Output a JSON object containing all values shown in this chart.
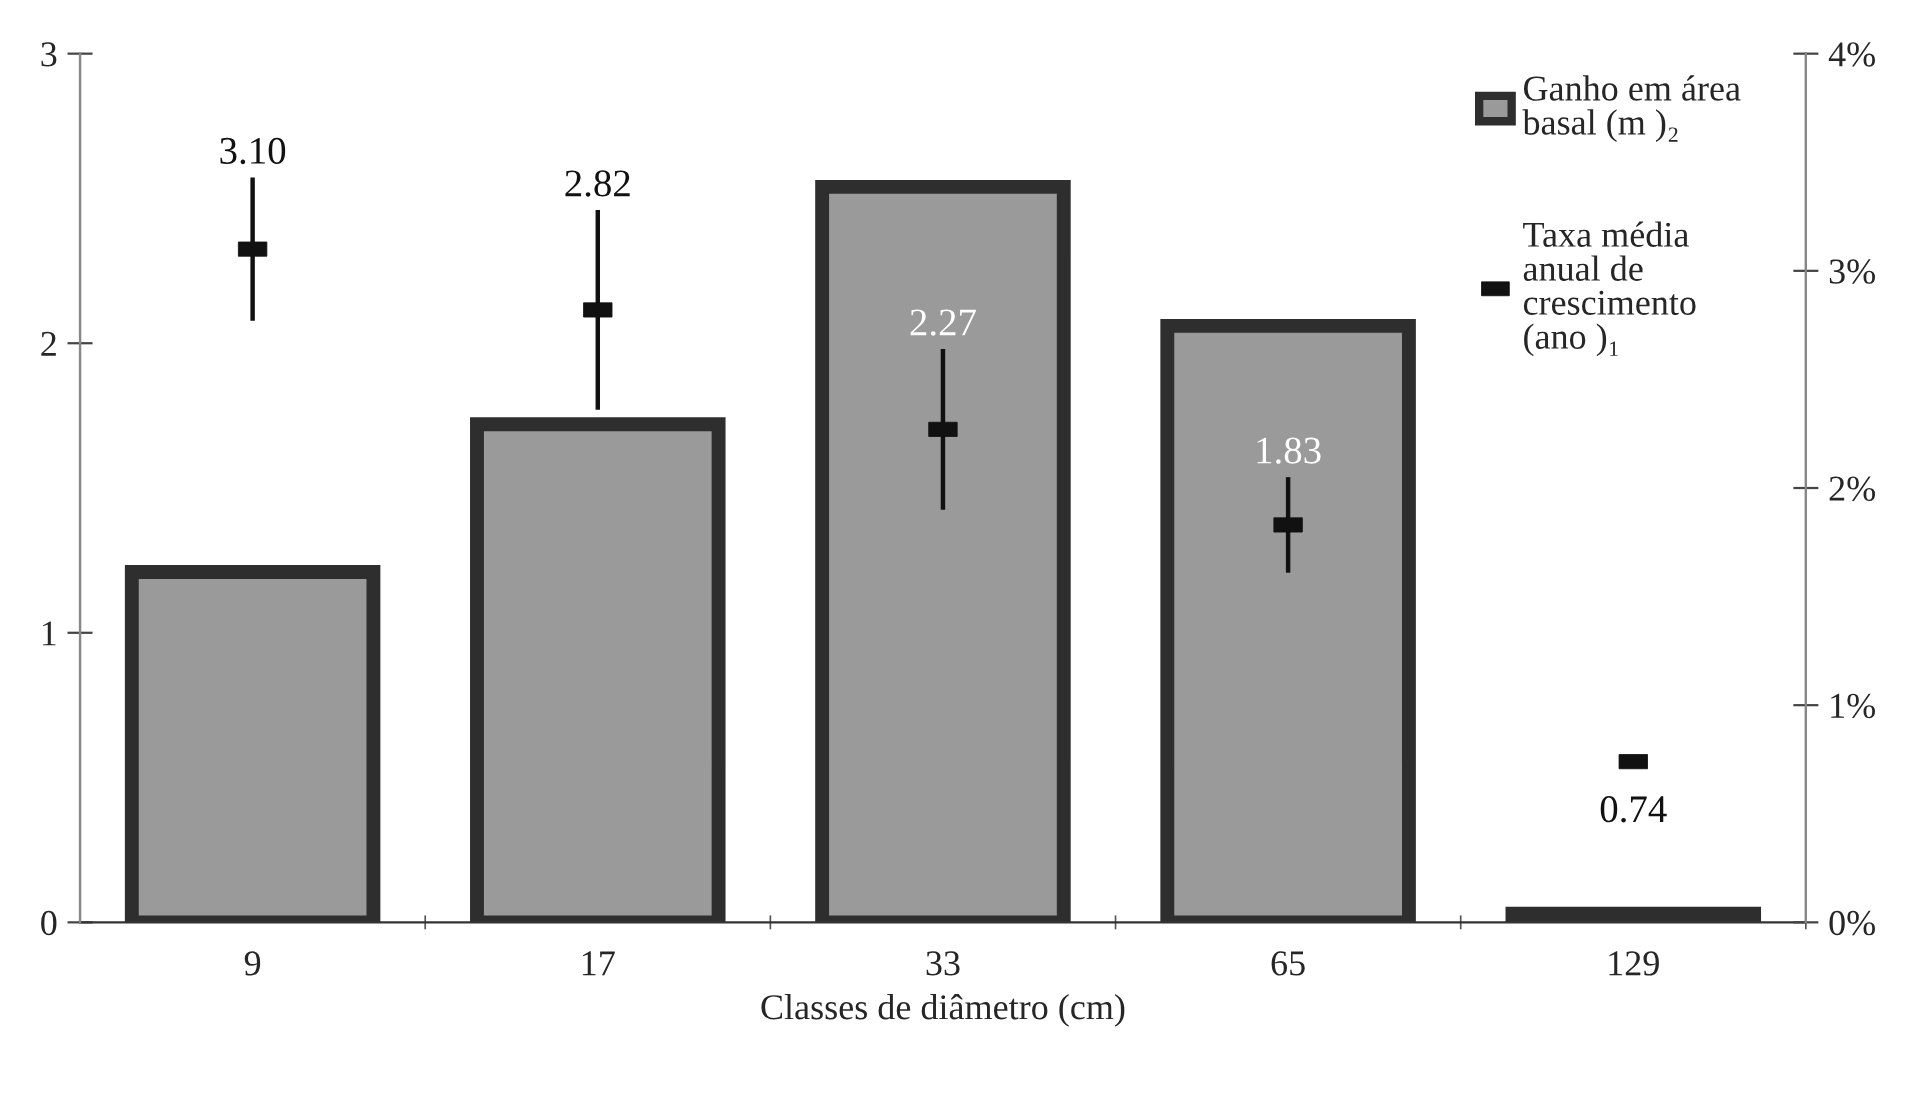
{
  "chart_data": {
    "type": "bar",
    "xlabel": "Classes de diâmetro (cm)",
    "categories": [
      "9",
      "17",
      "33",
      "65",
      "129"
    ],
    "series": [
      {
        "name": "Ganho em área\nbasal (m )₂",
        "color": "#9a9a9a",
        "values": [
          1.21,
          1.72,
          2.54,
          2.06,
          0.03
        ]
      },
      {
        "name": "Taxa média\nanual de\ncrescimento\n(ano )₁",
        "type": "scatter",
        "axis": "y2",
        "color": "#111111",
        "values": [
          3.1,
          2.82,
          2.27,
          1.83,
          0.74
        ],
        "errors": [
          0.33,
          0.46,
          0.37,
          0.22,
          null
        ],
        "value_labels": [
          "3.10",
          "2.82",
          "2.27",
          "1.83",
          "0.74"
        ]
      }
    ],
    "ylim": [
      0,
      3
    ],
    "yticks": [
      0,
      1,
      2,
      3
    ],
    "y2lim": [
      0,
      4
    ],
    "y2ticks": [
      {
        "value": 0,
        "label": "0%"
      },
      {
        "value": 1,
        "label": "1%"
      },
      {
        "value": 2,
        "label": "2%"
      },
      {
        "value": 3,
        "label": "3%"
      },
      {
        "value": 4,
        "label": "4%"
      }
    ],
    "legend": "top right",
    "grid": false
  }
}
